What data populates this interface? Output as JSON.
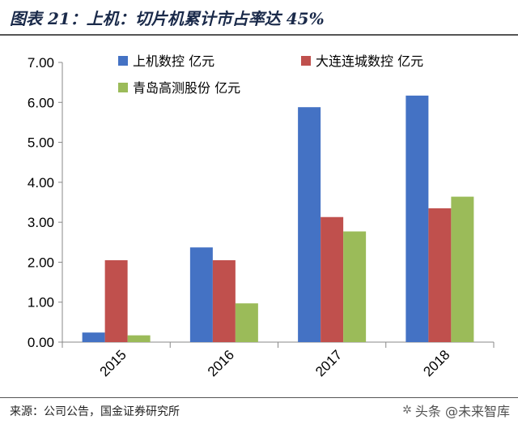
{
  "header": {
    "title": "图表 21：上机：切片机累计市占率达 45%"
  },
  "footer": {
    "source": "来源：公司公告，国金证券研究所",
    "watermark": "头条 @未来智库",
    "watermark_icon": "watermark-logo-icon"
  },
  "colors": {
    "s1": "#4472C4",
    "s2": "#C0504D",
    "s3": "#9BBB59"
  },
  "chart_data": {
    "type": "bar",
    "categories": [
      "2015",
      "2016",
      "2017",
      "2018"
    ],
    "series": [
      {
        "name": "上机数控 亿元",
        "values": [
          0.24,
          2.37,
          5.88,
          6.17
        ]
      },
      {
        "name": "大连连城数控 亿元",
        "values": [
          2.05,
          2.05,
          3.13,
          3.35
        ]
      },
      {
        "name": "青岛高测股份 亿元",
        "values": [
          0.17,
          0.97,
          2.77,
          3.64
        ]
      }
    ],
    "ylim": [
      0,
      7
    ],
    "yticks": [
      "0.00",
      "1.00",
      "2.00",
      "3.00",
      "4.00",
      "5.00",
      "6.00",
      "7.00"
    ],
    "legend": "top",
    "grid": false
  }
}
